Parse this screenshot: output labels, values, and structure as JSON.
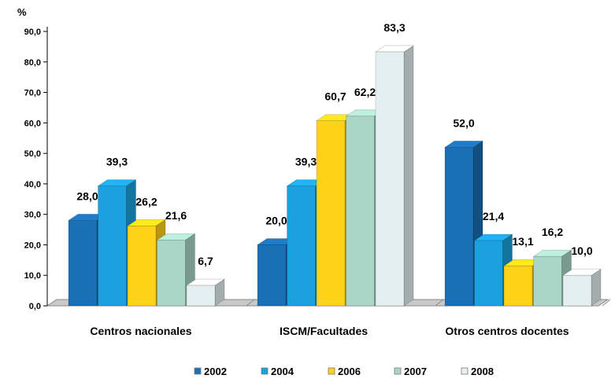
{
  "chart_data": {
    "type": "bar",
    "y_unit_label": "%",
    "ylim": [
      0,
      90
    ],
    "y_ticks": [
      "0,0",
      "10,0",
      "20,0",
      "30,0",
      "40,0",
      "50,0",
      "60,0",
      "70,0",
      "80,0",
      "90,0"
    ],
    "categories": [
      "Centros nacionales",
      "ISCM/Facultades",
      "Otros centros docentes"
    ],
    "series": [
      {
        "name": "2002",
        "color": "#1a6fb5",
        "values": [
          28.0,
          20.0,
          52.0
        ],
        "labels": [
          "28,0",
          "20,0",
          "52,0"
        ]
      },
      {
        "name": "2004",
        "color": "#1ba1dd",
        "values": [
          39.3,
          39.3,
          21.4
        ],
        "labels": [
          "39,3",
          "39,3",
          "21,4"
        ]
      },
      {
        "name": "2006",
        "color": "#ffd21a",
        "values": [
          26.2,
          60.7,
          13.1
        ],
        "labels": [
          "26,2",
          "60,7",
          "13,1"
        ]
      },
      {
        "name": "2007",
        "color": "#a9d6c6",
        "values": [
          21.6,
          62.2,
          16.2
        ],
        "labels": [
          "21,6",
          "62,2",
          "16,2"
        ]
      },
      {
        "name": "2008",
        "color": "#e4eff1",
        "values": [
          6.7,
          83.3,
          10.0
        ],
        "labels": [
          "6,7",
          "83,3",
          "10,0"
        ]
      }
    ],
    "grid": false,
    "bars_3d": true,
    "legend_position": "bottom"
  }
}
